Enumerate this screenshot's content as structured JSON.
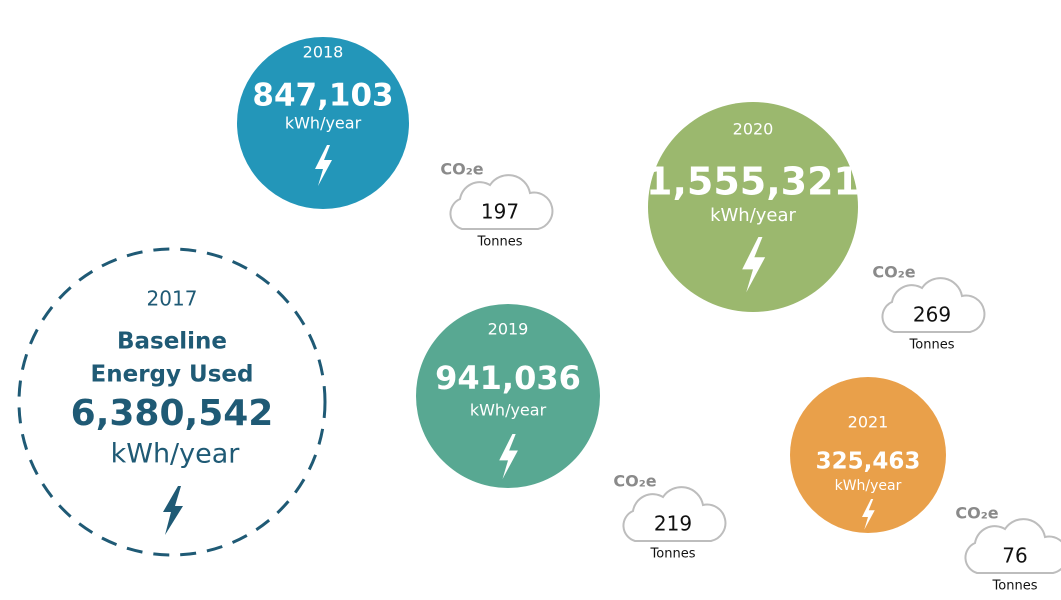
{
  "baseline": {
    "year": "2017",
    "label_lines": [
      "Baseline",
      "Energy Used"
    ],
    "value": "6,380,542",
    "unit": "kWh/year"
  },
  "years": [
    {
      "year": "2018",
      "value": "847,103",
      "unit": "kWh/year",
      "co2_label": "CO₂e",
      "co2": "197",
      "co2_unit": "Tonnes"
    },
    {
      "year": "2019",
      "value": "941,036",
      "unit": "kWh/year",
      "co2_label": "CO₂e",
      "co2": "219",
      "co2_unit": "Tonnes"
    },
    {
      "year": "2020",
      "value": "1,555,321",
      "unit": "kWh/year",
      "co2_label": "CO₂e",
      "co2": "269",
      "co2_unit": "Tonnes"
    },
    {
      "year": "2021",
      "value": "325,463",
      "unit": "kWh/year",
      "co2_label": "CO₂e",
      "co2": "76",
      "co2_unit": "Tonnes"
    }
  ]
}
